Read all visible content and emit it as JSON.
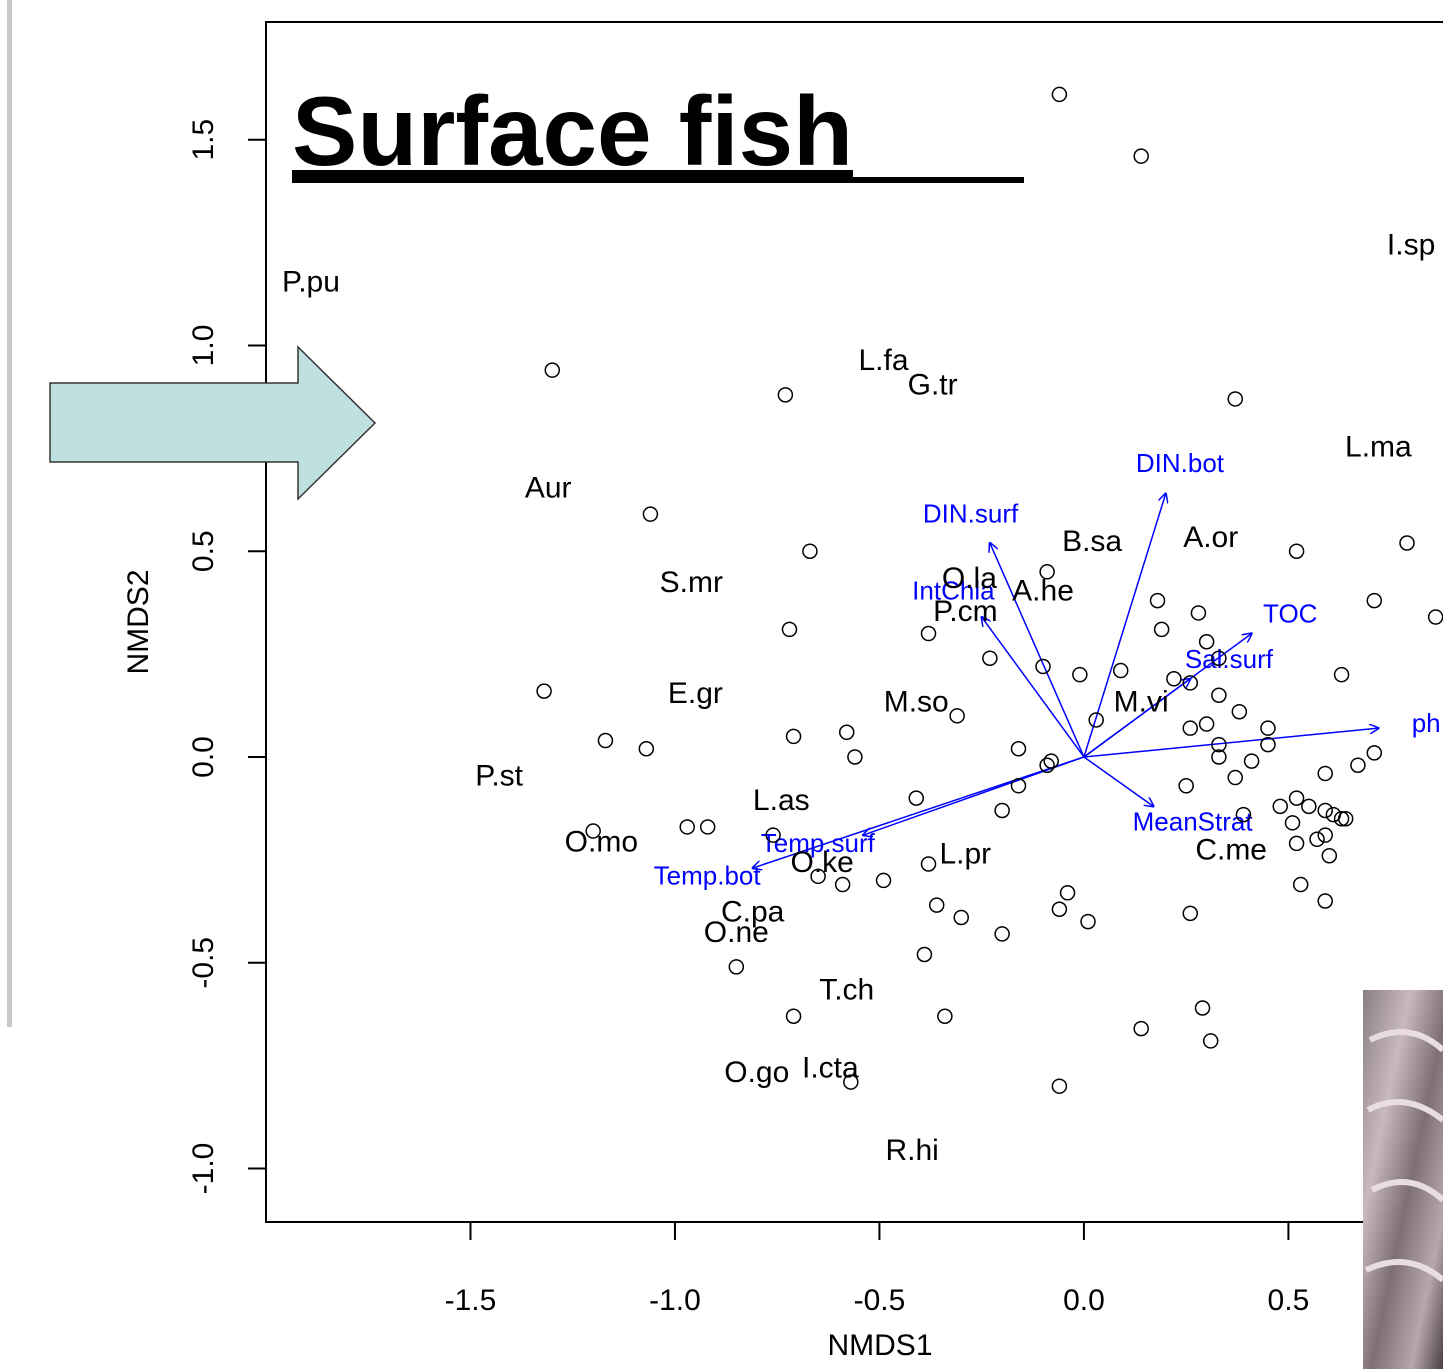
{
  "chart_data": {
    "type": "scatter",
    "title": "Surface fish",
    "xlabel": "NMDS1",
    "ylabel": "NMDS2",
    "xlim": [
      -2.0,
      0.878
    ],
    "ylim": [
      -1.13,
      1.786
    ],
    "xticks": [
      -1.5,
      {
        "value": -1,
        "label": "-1.0"
      },
      -0.5,
      {
        "value": 0,
        "label": "0.0"
      },
      0.5
    ],
    "yticks": [
      {
        "value": -1,
        "label": "-1.0"
      },
      -0.5,
      {
        "value": 0,
        "label": "0.0"
      },
      0.5,
      {
        "value": 1,
        "label": "1.0"
      },
      1.5
    ],
    "point_color": "#000000",
    "vector_color": "#0000ff",
    "sites": {
      "x": [
        -0.06,
        0.14,
        -1.3,
        -0.73,
        0.37,
        -1.06,
        -0.67,
        0.52,
        0.79,
        -0.09,
        0.18,
        0.28,
        0.71,
        0.86,
        -0.72,
        -0.38,
        0.19,
        0.3,
        0.33,
        -0.23,
        -0.1,
        -0.01,
        0.09,
        0.63,
        0.22,
        -1.32,
        0.26,
        0.33,
        0.38,
        -0.31,
        0.03,
        0.26,
        0.3,
        0.45,
        0.45,
        -1.17,
        -1.07,
        -0.71,
        -0.58,
        -0.56,
        -0.16,
        -0.08,
        -0.09,
        0.33,
        0.33,
        0.41,
        0.67,
        0.71,
        -0.16,
        0.25,
        0.37,
        0.59,
        -0.41,
        -0.2,
        0.39,
        0.48,
        0.52,
        0.55,
        0.59,
        0.61,
        0.63,
        0.64,
        0.51,
        0.57,
        0.59,
        0.52,
        0.6,
        0.53,
        0.59,
        -1.2,
        -0.97,
        -0.92,
        -0.76,
        -0.65,
        -0.59,
        -0.38,
        -0.49,
        -0.04,
        -0.06,
        0.01,
        -0.36,
        -0.3,
        -0.2,
        0.26,
        -0.39,
        -0.85,
        -0.71,
        -0.34,
        0.14,
        0.29,
        0.31,
        -0.57,
        -0.06
      ],
      "y": [
        1.61,
        1.46,
        0.94,
        0.88,
        0.87,
        0.59,
        0.5,
        0.5,
        0.52,
        0.45,
        0.38,
        0.35,
        0.38,
        0.34,
        0.31,
        0.3,
        0.31,
        0.28,
        0.24,
        0.24,
        0.22,
        0.2,
        0.21,
        0.2,
        0.19,
        0.16,
        0.18,
        0.15,
        0.11,
        0.1,
        0.09,
        0.07,
        0.08,
        0.07,
        0.03,
        0.04,
        0.02,
        0.05,
        0.06,
        0.0,
        0.02,
        -0.01,
        -0.02,
        0.03,
        0.0,
        -0.01,
        -0.02,
        0.01,
        -0.07,
        -0.07,
        -0.05,
        -0.04,
        -0.1,
        -0.13,
        -0.14,
        -0.12,
        -0.1,
        -0.12,
        -0.13,
        -0.14,
        -0.15,
        -0.15,
        -0.16,
        -0.2,
        -0.19,
        -0.21,
        -0.24,
        -0.31,
        -0.35,
        -0.18,
        -0.17,
        -0.17,
        -0.19,
        -0.29,
        -0.31,
        -0.26,
        -0.3,
        -0.33,
        -0.37,
        -0.4,
        -0.36,
        -0.39,
        -0.43,
        -0.38,
        -0.48,
        -0.51,
        -0.63,
        -0.63,
        -0.66,
        -0.61,
        -0.69,
        -0.79,
        -0.8
      ]
    },
    "species": {
      "labels": [
        "P.pu",
        "L.fa",
        "G.tr",
        "I.sp",
        "L.ma",
        "Aur",
        "B.sa",
        "A.or",
        "S.mr",
        "O.la",
        "A.he",
        "P.cm",
        "E.gr",
        "M.so",
        "M.vi",
        "P.st",
        "L.as",
        "O.mo",
        "O.ke",
        "C.me",
        "L.pr",
        "C.pa",
        "O.ne",
        "T.ch",
        "O.go",
        "I.cta",
        "R.hi"
      ],
      "x": [
        -1.89,
        -0.49,
        -0.37,
        0.8,
        0.72,
        -1.31,
        0.02,
        0.31,
        -0.96,
        -0.28,
        -0.1,
        -0.29,
        -0.95,
        -0.41,
        0.14,
        -1.43,
        -0.74,
        -1.18,
        -0.64,
        0.36,
        -0.29,
        -0.81,
        -0.85,
        -0.58,
        -0.8,
        -0.62,
        -0.42
      ],
      "y": [
        1.15,
        0.96,
        0.9,
        1.24,
        0.75,
        0.65,
        0.52,
        0.53,
        0.42,
        0.43,
        0.4,
        0.35,
        0.15,
        0.13,
        0.13,
        -0.05,
        -0.11,
        -0.21,
        -0.26,
        -0.23,
        -0.24,
        -0.38,
        -0.43,
        -0.57,
        -0.77,
        -0.76,
        -0.96
      ]
    },
    "vectors": {
      "names": [
        "DIN.bot",
        "DIN.surf",
        "IntChla",
        "TOC",
        "Sal.surf",
        "ph",
        "MeanStrat",
        "Temp.surf",
        "Temp.bot"
      ],
      "x": [
        0.2,
        -0.23,
        -0.25,
        0.41,
        0.26,
        0.72,
        0.17,
        -0.54,
        -0.81
      ],
      "y": [
        0.64,
        0.52,
        0.34,
        0.3,
        0.19,
        0.07,
        -0.12,
        -0.19,
        -0.27
      ]
    }
  }
}
